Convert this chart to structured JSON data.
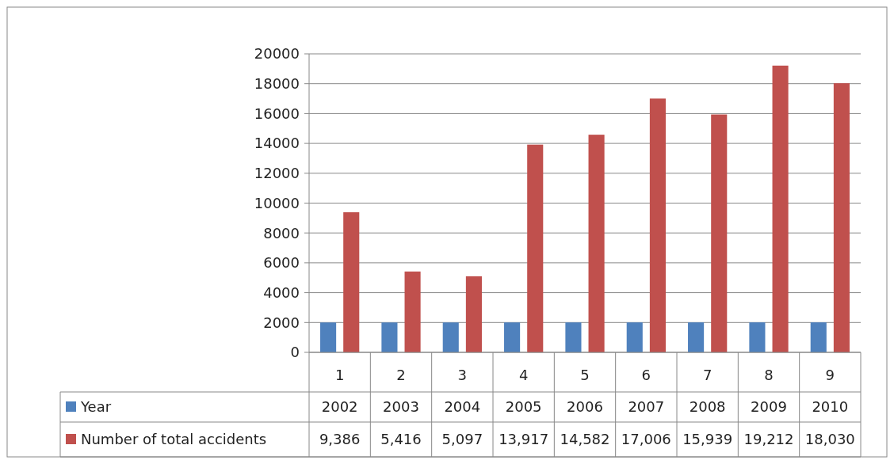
{
  "chart_data": {
    "type": "bar",
    "categories": [
      "1",
      "2",
      "3",
      "4",
      "5",
      "6",
      "7",
      "8",
      "9"
    ],
    "series": [
      {
        "name": "Year",
        "color": "#4f81bd",
        "values": [
          2002,
          2003,
          2004,
          2005,
          2006,
          2007,
          2008,
          2009,
          2010
        ],
        "value_labels": [
          "2002",
          "2003",
          "2004",
          "2005",
          "2006",
          "2007",
          "2008",
          "2009",
          "2010"
        ]
      },
      {
        "name": "Number of total accidents",
        "color": "#c0504d",
        "values": [
          9386,
          5416,
          5097,
          13917,
          14582,
          17006,
          15939,
          19212,
          18030
        ],
        "value_labels": [
          "9,386",
          "5,416",
          "5,097",
          "13,917",
          "14,582",
          "17,006",
          "15,939",
          "19,212",
          "18,030"
        ]
      }
    ],
    "ylim": [
      0,
      20000
    ],
    "yticks": [
      0,
      2000,
      4000,
      6000,
      8000,
      10000,
      12000,
      14000,
      16000,
      18000,
      20000
    ],
    "grid": "y",
    "legend": "bottom"
  }
}
